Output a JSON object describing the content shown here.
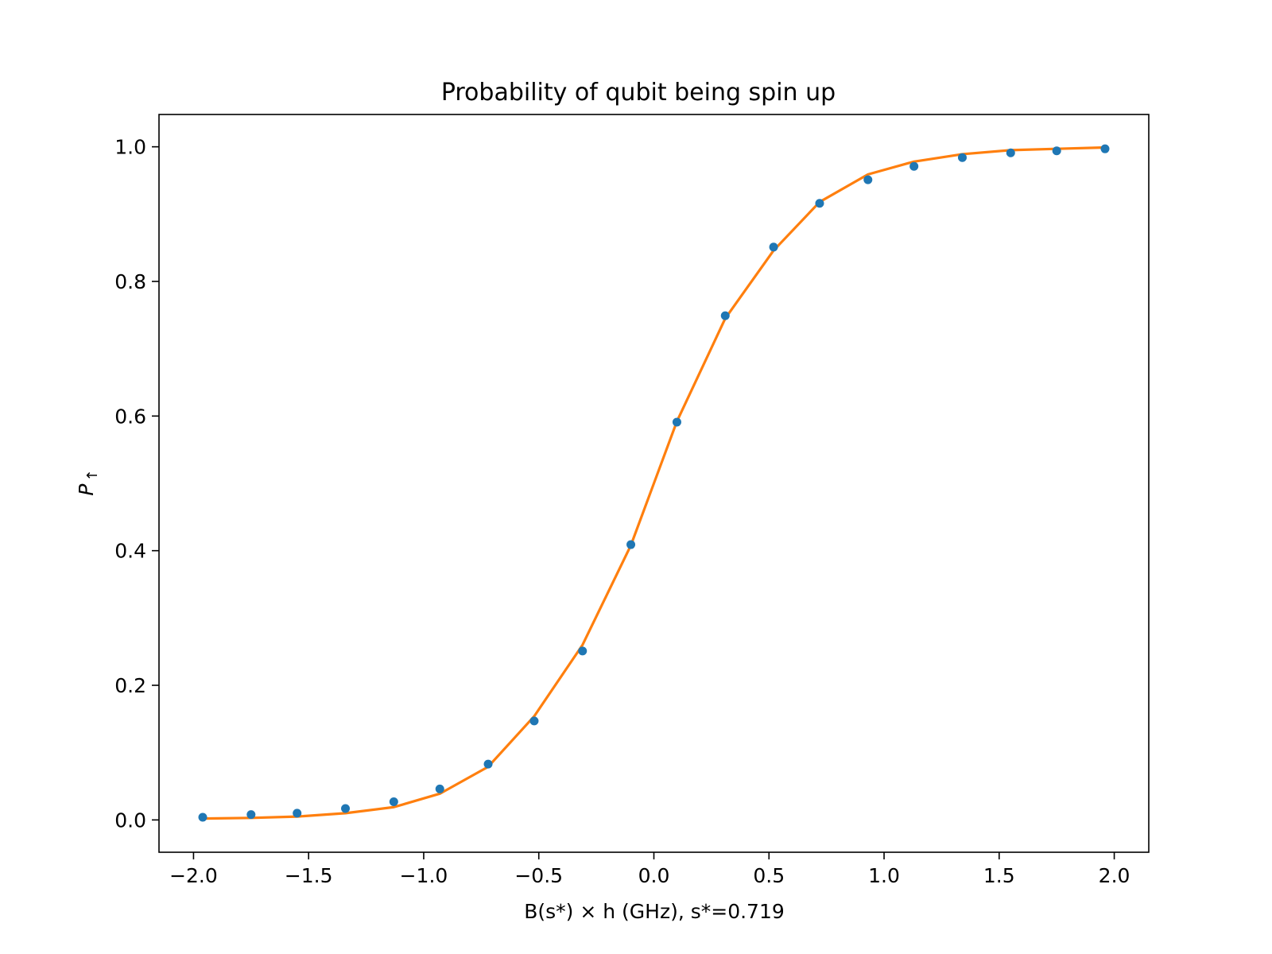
{
  "chart_data": {
    "type": "scatter",
    "title": "Probability of qubit being spin up",
    "xlabel": "B(s*) × h (GHz),     s*=0.719",
    "ylabel_main": "P",
    "ylabel_sub": "↑",
    "xlim": [
      -2.15,
      2.15
    ],
    "ylim": [
      -0.048,
      1.048
    ],
    "x_ticks": [
      -2.0,
      -1.5,
      -1.0,
      -0.5,
      0.0,
      0.5,
      1.0,
      1.5,
      2.0
    ],
    "x_tick_labels": [
      "−2.0",
      "−1.5",
      "−1.0",
      "−0.5",
      "0.0",
      "0.5",
      "1.0",
      "1.5",
      "2.0"
    ],
    "y_ticks": [
      0.0,
      0.2,
      0.4,
      0.6,
      0.8,
      1.0
    ],
    "y_tick_labels": [
      "0.0",
      "0.2",
      "0.4",
      "0.6",
      "0.8",
      "1.0"
    ],
    "grid": false,
    "colors": {
      "points": "#1f77b4",
      "fit": "#ff7f0e"
    },
    "series": [
      {
        "kind": "points",
        "x": [
          -1.96,
          -1.75,
          -1.55,
          -1.34,
          -1.13,
          -0.93,
          -0.72,
          -0.52,
          -0.31,
          -0.1,
          0.1,
          0.31,
          0.52,
          0.72,
          0.93,
          1.13,
          1.34,
          1.55,
          1.75,
          1.96
        ],
        "y": [
          0.004,
          0.008,
          0.01,
          0.017,
          0.027,
          0.046,
          0.083,
          0.147,
          0.251,
          0.409,
          0.591,
          0.749,
          0.851,
          0.916,
          0.951,
          0.971,
          0.984,
          0.991,
          0.994,
          0.997
        ]
      },
      {
        "kind": "line",
        "x": [
          -1.96,
          -1.75,
          -1.55,
          -1.34,
          -1.13,
          -0.93,
          -0.72,
          -0.52,
          -0.31,
          -0.1,
          0.0,
          0.1,
          0.31,
          0.52,
          0.72,
          0.93,
          1.13,
          1.34,
          1.55,
          1.75,
          1.96
        ],
        "y": [
          0.002,
          0.003,
          0.005,
          0.01,
          0.019,
          0.039,
          0.079,
          0.154,
          0.26,
          0.408,
          0.5,
          0.592,
          0.745,
          0.846,
          0.918,
          0.959,
          0.978,
          0.989,
          0.995,
          0.997,
          0.999
        ]
      }
    ]
  }
}
